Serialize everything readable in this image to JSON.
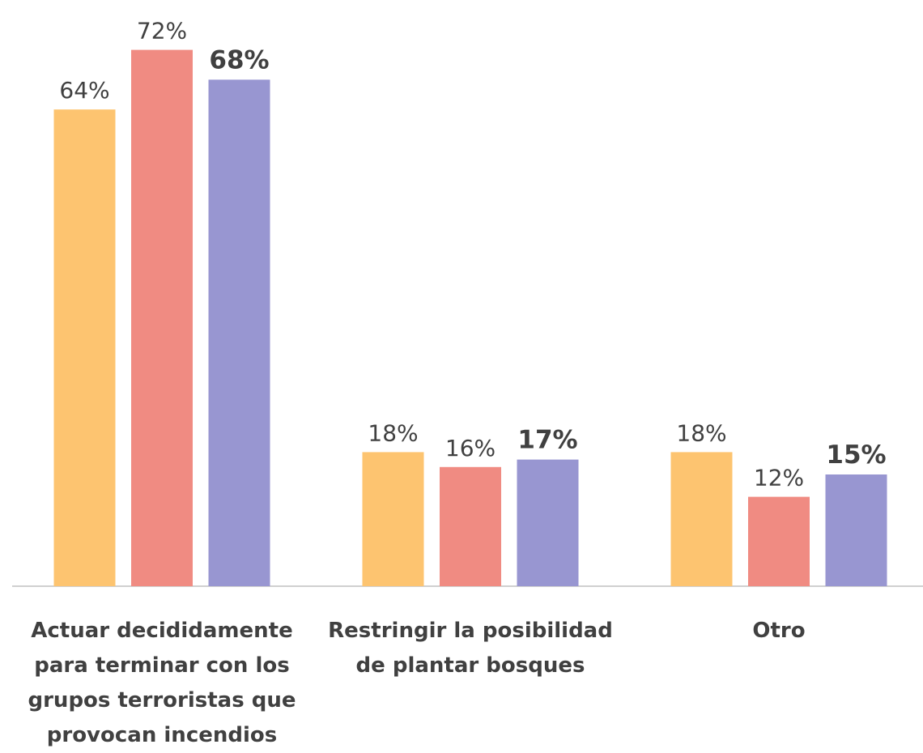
{
  "chart_data": {
    "type": "bar",
    "categories": [
      "Actuar decididamente para terminar con los grupos terroristas que provocan incendios",
      "Restringir la posibilidad de plantar bosques",
      "Otro"
    ],
    "series": [
      {
        "color": "#fdc470",
        "values": [
          64,
          18,
          18
        ],
        "value_labels": [
          "64%",
          "18%",
          "18%"
        ],
        "label_bold": false
      },
      {
        "color": "#f08b82",
        "values": [
          72,
          16,
          12
        ],
        "value_labels": [
          "72%",
          "16%",
          "12%"
        ],
        "label_bold": false
      },
      {
        "color": "#9896d1",
        "values": [
          68,
          17,
          15
        ],
        "value_labels": [
          "68%",
          "17%",
          "15%"
        ],
        "label_bold": true
      }
    ]
  }
}
